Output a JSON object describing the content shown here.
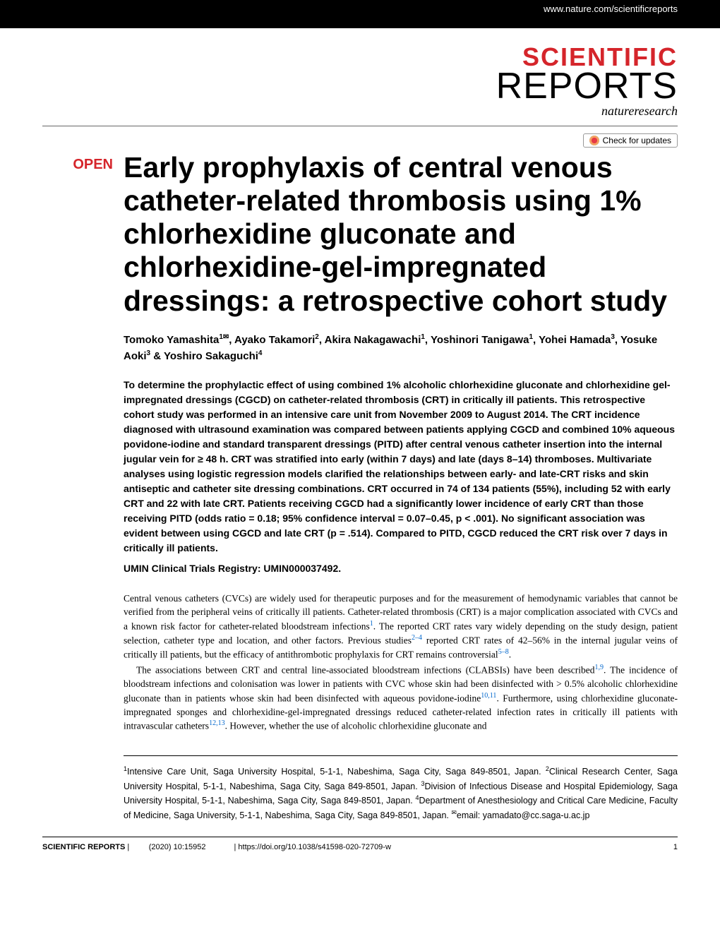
{
  "header": {
    "url": "www.nature.com/scientificreports",
    "journal_line1": "SCIENTIFIC",
    "journal_line2": "REPORTS",
    "publisher": "natureresearch",
    "check_updates": "Check for updates"
  },
  "article": {
    "open_access": "OPEN",
    "title": "Early prophylaxis of central venous catheter-related thrombosis using 1% chlorhexidine gluconate and chlorhexidine-gel-impregnated dressings: a retrospective cohort study",
    "authors_html": "Tomoko Yamashita<sup>1✉</sup>, Ayako Takamori<sup>2</sup>, Akira Nakagawachi<sup>1</sup>, Yoshinori Tanigawa<sup>1</sup>, Yohei Hamada<sup>3</sup>, Yosuke Aoki<sup>3</sup> & Yoshiro Sakaguchi<sup>4</sup>",
    "abstract": "To determine the prophylactic effect of using combined 1% alcoholic chlorhexidine gluconate and chlorhexidine gel-impregnated dressings (CGCD) on catheter-related thrombosis (CRT) in critically ill patients. This retrospective cohort study was performed in an intensive care unit from November 2009 to August 2014. The CRT incidence diagnosed with ultrasound examination was compared between patients applying CGCD and combined 10% aqueous povidone-iodine and standard transparent dressings (PITD) after central venous catheter insertion into the internal jugular vein for ≥ 48 h. CRT was stratified into early (within 7 days) and late (days 8–14) thromboses. Multivariate analyses using logistic regression models clarified the relationships between early- and late-CRT risks and skin antiseptic and catheter site dressing combinations. CRT occurred in 74 of 134 patients (55%), including 52 with early CRT and 22 with late CRT. Patients receiving CGCD had a significantly lower incidence of early CRT than those receiving PITD (odds ratio = 0.18; 95% confidence interval = 0.07–0.45, p < .001). No significant association was evident between using CGCD and late CRT (p = .514). Compared to PITD, CGCD reduced the CRT risk over 7 days in critically ill patients.",
    "registry": "UMIN Clinical Trials Registry: UMIN000037492.",
    "body_p1_pre": "Central venous catheters (CVCs) are widely used for therapeutic purposes and for the measurement of hemodynamic variables that cannot be verified from the peripheral veins of critically ill patients. Catheter-related thrombosis (CRT) is a major complication associated with CVCs and a known risk factor for catheter-related bloodstream infections",
    "ref1": "1",
    "body_p1_mid1": ". The reported CRT rates vary widely depending on the study design, patient selection, catheter type and location, and other factors. Previous studies",
    "ref2": "2–4",
    "body_p1_mid2": " reported CRT rates of 42–56% in the internal jugular veins of critically ill patients, but the efficacy of antithrombotic prophylaxis for CRT remains controversial",
    "ref3": "5–8",
    "body_p1_end": ".",
    "body_p2_pre": "The associations between CRT and central line-associated bloodstream infections (CLABSIs) have been described",
    "ref4": "1,9",
    "body_p2_mid1": ". The incidence of bloodstream infections and colonisation was lower in patients with CVC whose skin had been disinfected with > 0.5% alcoholic chlorhexidine gluconate than in patients whose skin had been disinfected with aqueous povidone-iodine",
    "ref5": "10,11",
    "body_p2_mid2": ". Furthermore, using chlorhexidine gluconate-impregnated sponges and chlorhexidine-gel-impregnated dressings reduced catheter-related infection rates in critically ill patients with intravascular catheters",
    "ref6": "12,13",
    "body_p2_end": ". However, whether the use of alcoholic chlorhexidine gluconate and"
  },
  "affiliations_html": "<sup>1</sup>Intensive Care Unit, Saga University Hospital, 5-1-1, Nabeshima, Saga City, Saga 849-8501, Japan. <sup>2</sup>Clinical Research Center, Saga University Hospital, 5-1-1, Nabeshima, Saga City, Saga 849-8501, Japan. <sup>3</sup>Division of Infectious Disease and Hospital Epidemiology, Saga University Hospital, 5-1-1, Nabeshima, Saga City, Saga 849-8501, Japan. <sup>4</sup>Department of Anesthesiology and Critical Care Medicine, Faculty of Medicine, Saga University, 5-1-1, Nabeshima, Saga City, Saga 849-8501, Japan. <sup>✉</sup>email: yamadato@cc.saga-u.ac.jp",
  "footer": {
    "journal": "SCIENTIFIC REPORTS",
    "citation": "(2020) 10:15952",
    "doi": "https://doi.org/10.1038/s41598-020-72709-w",
    "page": "1"
  },
  "colors": {
    "brand_red": "#d5252b",
    "link_blue": "#0066cc",
    "text_black": "#000000",
    "bg_white": "#ffffff"
  },
  "typography": {
    "title_fontsize": 41,
    "body_fontsize": 13.5,
    "abstract_fontsize": 14,
    "authors_fontsize": 15,
    "footer_fontsize": 11
  }
}
